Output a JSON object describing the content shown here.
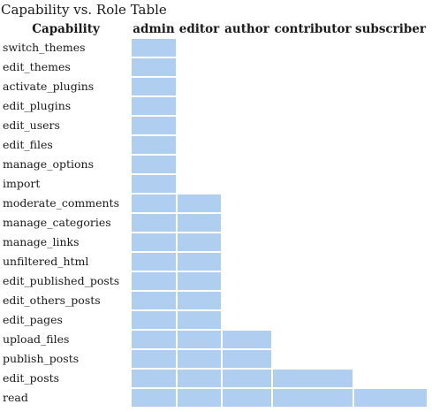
{
  "title": "Capability vs. Role Table",
  "headers": {
    "capability": "Capability",
    "roles": [
      "admin",
      "editor",
      "author",
      "contributor",
      "subscriber"
    ]
  },
  "highlight_color": "#b0cff0",
  "rows": [
    {
      "capability": "switch_themes",
      "roles": [
        true,
        false,
        false,
        false,
        false
      ]
    },
    {
      "capability": "edit_themes",
      "roles": [
        true,
        false,
        false,
        false,
        false
      ]
    },
    {
      "capability": "activate_plugins",
      "roles": [
        true,
        false,
        false,
        false,
        false
      ]
    },
    {
      "capability": "edit_plugins",
      "roles": [
        true,
        false,
        false,
        false,
        false
      ]
    },
    {
      "capability": "edit_users",
      "roles": [
        true,
        false,
        false,
        false,
        false
      ]
    },
    {
      "capability": "edit_files",
      "roles": [
        true,
        false,
        false,
        false,
        false
      ]
    },
    {
      "capability": "manage_options",
      "roles": [
        true,
        false,
        false,
        false,
        false
      ]
    },
    {
      "capability": "import",
      "roles": [
        true,
        false,
        false,
        false,
        false
      ]
    },
    {
      "capability": "moderate_comments",
      "roles": [
        true,
        true,
        false,
        false,
        false
      ]
    },
    {
      "capability": "manage_categories",
      "roles": [
        true,
        true,
        false,
        false,
        false
      ]
    },
    {
      "capability": "manage_links",
      "roles": [
        true,
        true,
        false,
        false,
        false
      ]
    },
    {
      "capability": "unfiltered_html",
      "roles": [
        true,
        true,
        false,
        false,
        false
      ]
    },
    {
      "capability": "edit_published_posts",
      "roles": [
        true,
        true,
        false,
        false,
        false
      ]
    },
    {
      "capability": "edit_others_posts",
      "roles": [
        true,
        true,
        false,
        false,
        false
      ]
    },
    {
      "capability": "edit_pages",
      "roles": [
        true,
        true,
        false,
        false,
        false
      ]
    },
    {
      "capability": "upload_files",
      "roles": [
        true,
        true,
        true,
        false,
        false
      ]
    },
    {
      "capability": "publish_posts",
      "roles": [
        true,
        true,
        true,
        false,
        false
      ]
    },
    {
      "capability": "edit_posts",
      "roles": [
        true,
        true,
        true,
        true,
        false
      ]
    },
    {
      "capability": "read",
      "roles": [
        true,
        true,
        true,
        true,
        true
      ]
    }
  ]
}
